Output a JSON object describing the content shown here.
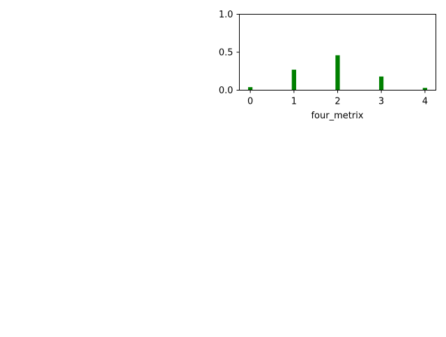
{
  "chart_data": {
    "type": "bar",
    "x": [
      0,
      1,
      2,
      3,
      4
    ],
    "values": [
      0.04,
      0.27,
      0.46,
      0.18,
      0.03
    ],
    "xlabel": "four_metrix",
    "ylabel": "",
    "title": "",
    "xlim": [
      -0.25,
      4.25
    ],
    "ylim": [
      0,
      1
    ],
    "xticks": [
      "0",
      "1",
      "2",
      "3",
      "4"
    ],
    "yticks": [
      "0.0",
      "0.5",
      "1.0"
    ],
    "ytick_values": [
      0,
      0.5,
      1.0
    ],
    "bar_color": "#008000",
    "grid": false,
    "legend": "none"
  }
}
